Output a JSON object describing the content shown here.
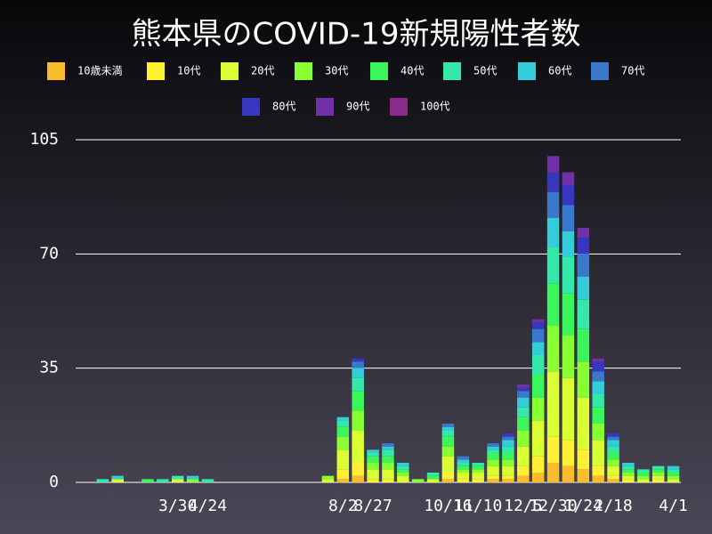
{
  "chart_data": {
    "type": "stacked_bar",
    "title": "熊本県のCOVID-19新規陽性者数",
    "categories": [
      null,
      null,
      null,
      null,
      null,
      null,
      "3/30",
      null,
      "4/24",
      null,
      null,
      null,
      null,
      null,
      null,
      null,
      null,
      "8/2",
      null,
      "8/27",
      null,
      null,
      null,
      null,
      "10/16",
      null,
      "11/10",
      null,
      null,
      "12/5",
      null,
      "12/30",
      null,
      "1/24",
      null,
      "2/18",
      null,
      null,
      null,
      "4/1"
    ],
    "ylim": [
      0,
      105
    ],
    "yticks": [
      0,
      35,
      70,
      105
    ],
    "grid": true,
    "series": [
      {
        "name": "10歳未満",
        "color": "#fbbc2c",
        "values": [
          0,
          0,
          0,
          0,
          0,
          0,
          0,
          0,
          0,
          0,
          0,
          0,
          0,
          0,
          0,
          0,
          0,
          1,
          2,
          0,
          0,
          0,
          0,
          0,
          1,
          0,
          0,
          1,
          1,
          2,
          3,
          6,
          5,
          4,
          2,
          1,
          0,
          0,
          0,
          0
        ]
      },
      {
        "name": "10代",
        "color": "#fff033",
        "values": [
          0,
          0,
          0,
          0,
          0,
          0,
          0,
          0,
          0,
          0,
          0,
          0,
          0,
          0,
          0,
          0,
          0,
          3,
          4,
          1,
          1,
          0,
          0,
          0,
          2,
          1,
          1,
          1,
          1,
          3,
          5,
          8,
          8,
          6,
          3,
          1,
          1,
          0,
          1,
          0
        ]
      },
      {
        "name": "20代",
        "color": "#d9ff33",
        "values": [
          0,
          0,
          1,
          0,
          0,
          0,
          1,
          0,
          0,
          0,
          0,
          0,
          0,
          0,
          0,
          0,
          1,
          6,
          10,
          3,
          3,
          2,
          0,
          1,
          5,
          2,
          2,
          3,
          3,
          6,
          11,
          20,
          19,
          16,
          8,
          3,
          1,
          1,
          1,
          1
        ]
      },
      {
        "name": "30代",
        "color": "#88ff33",
        "values": [
          0,
          0,
          0,
          0,
          0,
          0,
          0,
          1,
          0,
          0,
          0,
          0,
          0,
          0,
          0,
          0,
          1,
          4,
          6,
          2,
          2,
          1,
          1,
          0,
          3,
          1,
          1,
          2,
          2,
          5,
          7,
          14,
          13,
          11,
          5,
          2,
          1,
          1,
          1,
          1
        ]
      },
      {
        "name": "40代",
        "color": "#3cf55a",
        "values": [
          0,
          0,
          0,
          0,
          1,
          0,
          0,
          0,
          0,
          0,
          0,
          0,
          0,
          0,
          0,
          0,
          0,
          3,
          6,
          2,
          2,
          1,
          0,
          1,
          3,
          1,
          1,
          2,
          2,
          4,
          7,
          13,
          13,
          10,
          5,
          2,
          1,
          1,
          1,
          1
        ]
      },
      {
        "name": "50代",
        "color": "#33e8a8",
        "values": [
          0,
          1,
          0,
          0,
          0,
          1,
          1,
          0,
          1,
          0,
          0,
          0,
          0,
          0,
          0,
          0,
          0,
          2,
          4,
          1,
          2,
          1,
          0,
          1,
          2,
          1,
          1,
          1,
          2,
          3,
          6,
          11,
          11,
          9,
          4,
          2,
          1,
          1,
          1,
          1
        ]
      },
      {
        "name": "60代",
        "color": "#33ccd8",
        "values": [
          0,
          0,
          1,
          0,
          0,
          0,
          0,
          1,
          0,
          0,
          0,
          0,
          0,
          0,
          0,
          0,
          0,
          1,
          3,
          1,
          1,
          1,
          0,
          0,
          1,
          1,
          0,
          1,
          2,
          3,
          4,
          9,
          8,
          7,
          4,
          2,
          1,
          0,
          0,
          1
        ]
      },
      {
        "name": "70代",
        "color": "#3a78cc",
        "values": [
          0,
          0,
          0,
          0,
          0,
          0,
          0,
          0,
          0,
          0,
          0,
          0,
          0,
          0,
          0,
          0,
          0,
          0,
          2,
          0,
          1,
          0,
          0,
          0,
          1,
          1,
          0,
          1,
          1,
          2,
          4,
          8,
          8,
          7,
          3,
          1,
          0,
          0,
          0,
          0
        ]
      },
      {
        "name": "80代",
        "color": "#3636c0",
        "values": [
          0,
          0,
          0,
          0,
          0,
          0,
          0,
          0,
          0,
          0,
          0,
          0,
          0,
          0,
          0,
          0,
          0,
          0,
          1,
          0,
          0,
          0,
          0,
          0,
          0,
          0,
          0,
          0,
          1,
          1,
          2,
          6,
          6,
          5,
          3,
          1,
          0,
          0,
          0,
          0
        ]
      },
      {
        "name": "90代",
        "color": "#7030a8",
        "values": [
          0,
          0,
          0,
          0,
          0,
          0,
          0,
          0,
          0,
          0,
          0,
          0,
          0,
          0,
          0,
          0,
          0,
          0,
          0,
          0,
          0,
          0,
          0,
          0,
          0,
          0,
          0,
          0,
          0,
          1,
          1,
          5,
          4,
          3,
          1,
          0,
          0,
          0,
          0,
          0
        ]
      },
      {
        "name": "100代",
        "color": "#8a2a8a",
        "values": [
          0,
          0,
          0,
          0,
          0,
          0,
          0,
          0,
          0,
          0,
          0,
          0,
          0,
          0,
          0,
          0,
          0,
          0,
          0,
          0,
          0,
          0,
          0,
          0,
          0,
          0,
          0,
          0,
          0,
          0,
          0,
          0,
          0,
          0,
          0,
          0,
          0,
          0,
          0,
          0
        ]
      }
    ]
  }
}
